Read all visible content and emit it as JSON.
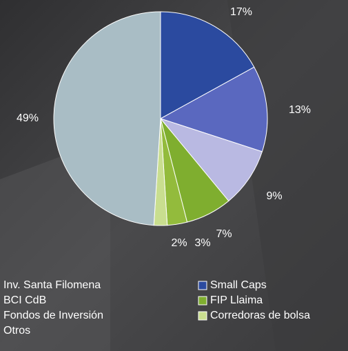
{
  "chart_data": {
    "type": "pie",
    "categories": [
      "Small Caps",
      "BCI CdB",
      "Fondos de Inversión",
      "FIP Llaima",
      "Inv. Santa Filomena",
      "Corredoras de bolsa",
      "Otros"
    ],
    "values": [
      17,
      13,
      9,
      7,
      3,
      2,
      49
    ],
    "value_labels": [
      "17%",
      "13%",
      "9%",
      "7%",
      "3%",
      "2%",
      "49%"
    ],
    "colors": [
      "#2b4a9f",
      "#5a68bf",
      "#b9b9e2",
      "#7fae2f",
      "#93bb3c",
      "#c9de8f",
      "#a9bdc5"
    ]
  }
}
